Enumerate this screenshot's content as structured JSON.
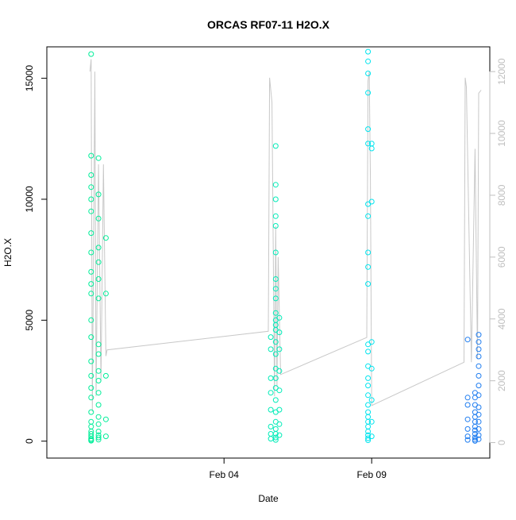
{
  "chart_data": {
    "type": "scatter",
    "title": "ORCAS RF07-11 H2O.X",
    "xlabel": "Date",
    "ylabel": "H2O.X",
    "x_ticks": [
      "Feb 04",
      "Feb 09"
    ],
    "y_ticks": [
      "0",
      "5000",
      "10000",
      "15000"
    ],
    "y2_ticks": [
      "0",
      "2000",
      "4000",
      "6000",
      "8000",
      "10000",
      "12000"
    ],
    "xlim": [
      "2016-01-29",
      "2016-02-13"
    ],
    "ylim": [
      -700,
      16300
    ],
    "y2lim": [
      -500,
      12800
    ],
    "grid": false,
    "colors": {
      "flight_rf07": "#00ee99",
      "flight_rf08": "#00ecb8",
      "flight_rf09": "#00e4ee",
      "flight_rf10_11": "#1f7df0",
      "altitude_line": "#c8c8c8",
      "axis": "#000000",
      "right_axis": "#bfbfbf"
    },
    "series": [
      {
        "points": [
          {
            "x": "2016-01-30T12:00",
            "y": 16000
          },
          {
            "x": "2016-01-30T12:00",
            "y": 11800
          },
          {
            "x": "2016-01-30T12:00",
            "y": 11000
          },
          {
            "x": "2016-01-30T12:00",
            "y": 10500
          },
          {
            "x": "2016-01-30T12:00",
            "y": 10000
          },
          {
            "x": "2016-01-30T12:00",
            "y": 9500
          },
          {
            "x": "2016-01-30T12:00",
            "y": 8600
          },
          {
            "x": "2016-01-30T12:00",
            "y": 7800
          },
          {
            "x": "2016-01-30T12:00",
            "y": 7000
          },
          {
            "x": "2016-01-30T12:00",
            "y": 6500
          },
          {
            "x": "2016-01-30T12:00",
            "y": 6100
          },
          {
            "x": "2016-01-30T12:00",
            "y": 5000
          },
          {
            "x": "2016-01-30T12:00",
            "y": 4300
          },
          {
            "x": "2016-01-30T12:00",
            "y": 3300
          },
          {
            "x": "2016-01-30T12:00",
            "y": 2700
          },
          {
            "x": "2016-01-30T12:00",
            "y": 2200
          },
          {
            "x": "2016-01-30T12:00",
            "y": 1800
          },
          {
            "x": "2016-01-30T12:00",
            "y": 1200
          },
          {
            "x": "2016-01-30T12:00",
            "y": 800
          },
          {
            "x": "2016-01-30T12:00",
            "y": 600
          },
          {
            "x": "2016-01-30T12:00",
            "y": 400
          },
          {
            "x": "2016-01-30T12:00",
            "y": 300
          },
          {
            "x": "2016-01-30T12:00",
            "y": 200
          },
          {
            "x": "2016-01-30T12:00",
            "y": 100
          },
          {
            "x": "2016-01-30T12:00",
            "y": 50
          },
          {
            "x": "2016-01-30T12:00",
            "y": 20
          },
          {
            "x": "2016-01-30T18:00",
            "y": 11700
          },
          {
            "x": "2016-01-30T18:00",
            "y": 10200
          },
          {
            "x": "2016-01-30T18:00",
            "y": 9200
          },
          {
            "x": "2016-01-30T18:00",
            "y": 8000
          },
          {
            "x": "2016-01-30T18:00",
            "y": 7400
          },
          {
            "x": "2016-01-30T18:00",
            "y": 6700
          },
          {
            "x": "2016-01-30T18:00",
            "y": 5900
          },
          {
            "x": "2016-01-30T18:00",
            "y": 4000
          },
          {
            "x": "2016-01-30T18:00",
            "y": 3600
          },
          {
            "x": "2016-01-30T18:00",
            "y": 2900
          },
          {
            "x": "2016-01-30T18:00",
            "y": 2500
          },
          {
            "x": "2016-01-30T18:00",
            "y": 2000
          },
          {
            "x": "2016-01-30T18:00",
            "y": 1500
          },
          {
            "x": "2016-01-30T18:00",
            "y": 1000
          },
          {
            "x": "2016-01-30T18:00",
            "y": 700
          },
          {
            "x": "2016-01-30T18:00",
            "y": 400
          },
          {
            "x": "2016-01-30T18:00",
            "y": 250
          },
          {
            "x": "2016-01-30T18:00",
            "y": 150
          },
          {
            "x": "2016-01-30T18:00",
            "y": 60
          },
          {
            "x": "2016-01-31T00:00",
            "y": 8400
          },
          {
            "x": "2016-01-31T00:00",
            "y": 6100
          },
          {
            "x": "2016-01-31T00:00",
            "y": 2700
          },
          {
            "x": "2016-01-31T00:00",
            "y": 900
          },
          {
            "x": "2016-01-31T00:00",
            "y": 200
          }
        ]
      },
      {
        "points": [
          {
            "x": "2016-02-05T14:00",
            "y": 4300
          },
          {
            "x": "2016-02-05T14:00",
            "y": 3800
          },
          {
            "x": "2016-02-05T14:00",
            "y": 2600
          },
          {
            "x": "2016-02-05T14:00",
            "y": 2000
          },
          {
            "x": "2016-02-05T14:00",
            "y": 1300
          },
          {
            "x": "2016-02-05T14:00",
            "y": 600
          },
          {
            "x": "2016-02-05T14:00",
            "y": 300
          },
          {
            "x": "2016-02-05T14:00",
            "y": 100
          },
          {
            "x": "2016-02-05T18:00",
            "y": 12200
          },
          {
            "x": "2016-02-05T18:00",
            "y": 10600
          },
          {
            "x": "2016-02-05T18:00",
            "y": 10000
          },
          {
            "x": "2016-02-05T18:00",
            "y": 9300
          },
          {
            "x": "2016-02-05T18:00",
            "y": 8900
          },
          {
            "x": "2016-02-05T18:00",
            "y": 7800
          },
          {
            "x": "2016-02-05T18:00",
            "y": 6700
          },
          {
            "x": "2016-02-05T18:00",
            "y": 6300
          },
          {
            "x": "2016-02-05T18:00",
            "y": 5900
          },
          {
            "x": "2016-02-05T18:00",
            "y": 5300
          },
          {
            "x": "2016-02-05T18:00",
            "y": 5000
          },
          {
            "x": "2016-02-05T18:00",
            "y": 4800
          },
          {
            "x": "2016-02-05T18:00",
            "y": 4600
          },
          {
            "x": "2016-02-05T18:00",
            "y": 4100
          },
          {
            "x": "2016-02-05T18:00",
            "y": 3600
          },
          {
            "x": "2016-02-05T18:00",
            "y": 3000
          },
          {
            "x": "2016-02-05T18:00",
            "y": 2600
          },
          {
            "x": "2016-02-05T18:00",
            "y": 2200
          },
          {
            "x": "2016-02-05T18:00",
            "y": 1700
          },
          {
            "x": "2016-02-05T18:00",
            "y": 1200
          },
          {
            "x": "2016-02-05T18:00",
            "y": 800
          },
          {
            "x": "2016-02-05T18:00",
            "y": 500
          },
          {
            "x": "2016-02-05T18:00",
            "y": 300
          },
          {
            "x": "2016-02-05T18:00",
            "y": 150
          },
          {
            "x": "2016-02-05T18:00",
            "y": 50
          },
          {
            "x": "2016-02-05T21:00",
            "y": 5100
          },
          {
            "x": "2016-02-05T21:00",
            "y": 4500
          },
          {
            "x": "2016-02-05T21:00",
            "y": 3800
          },
          {
            "x": "2016-02-05T21:00",
            "y": 2900
          },
          {
            "x": "2016-02-05T21:00",
            "y": 2100
          },
          {
            "x": "2016-02-05T21:00",
            "y": 1300
          },
          {
            "x": "2016-02-05T21:00",
            "y": 700
          },
          {
            "x": "2016-02-05T21:00",
            "y": 250
          }
        ]
      },
      {
        "points": [
          {
            "x": "2016-02-08T21:00",
            "y": 16100
          },
          {
            "x": "2016-02-08T21:00",
            "y": 15700
          },
          {
            "x": "2016-02-08T21:00",
            "y": 15200
          },
          {
            "x": "2016-02-08T21:00",
            "y": 14400
          },
          {
            "x": "2016-02-08T21:00",
            "y": 12900
          },
          {
            "x": "2016-02-08T21:00",
            "y": 12300
          },
          {
            "x": "2016-02-08T21:00",
            "y": 9800
          },
          {
            "x": "2016-02-08T21:00",
            "y": 9300
          },
          {
            "x": "2016-02-08T21:00",
            "y": 7800
          },
          {
            "x": "2016-02-08T21:00",
            "y": 7200
          },
          {
            "x": "2016-02-08T21:00",
            "y": 6500
          },
          {
            "x": "2016-02-08T21:00",
            "y": 4000
          },
          {
            "x": "2016-02-08T21:00",
            "y": 3700
          },
          {
            "x": "2016-02-08T21:00",
            "y": 3100
          },
          {
            "x": "2016-02-08T21:00",
            "y": 2600
          },
          {
            "x": "2016-02-08T21:00",
            "y": 2300
          },
          {
            "x": "2016-02-08T21:00",
            "y": 1900
          },
          {
            "x": "2016-02-08T21:00",
            "y": 1500
          },
          {
            "x": "2016-02-08T21:00",
            "y": 1200
          },
          {
            "x": "2016-02-08T21:00",
            "y": 1000
          },
          {
            "x": "2016-02-08T21:00",
            "y": 800
          },
          {
            "x": "2016-02-08T21:00",
            "y": 600
          },
          {
            "x": "2016-02-08T21:00",
            "y": 400
          },
          {
            "x": "2016-02-08T21:00",
            "y": 250
          },
          {
            "x": "2016-02-08T21:00",
            "y": 120
          },
          {
            "x": "2016-02-08T21:00",
            "y": 40
          },
          {
            "x": "2016-02-09T00:00",
            "y": 12300
          },
          {
            "x": "2016-02-09T00:00",
            "y": 12100
          },
          {
            "x": "2016-02-09T00:00",
            "y": 9900
          },
          {
            "x": "2016-02-09T00:00",
            "y": 4100
          },
          {
            "x": "2016-02-09T00:00",
            "y": 3000
          },
          {
            "x": "2016-02-09T00:00",
            "y": 1700
          },
          {
            "x": "2016-02-09T00:00",
            "y": 800
          },
          {
            "x": "2016-02-09T00:00",
            "y": 200
          }
        ]
      },
      {
        "points": [
          {
            "x": "2016-02-12T06:00",
            "y": 4200
          },
          {
            "x": "2016-02-12T06:00",
            "y": 1800
          },
          {
            "x": "2016-02-12T06:00",
            "y": 1500
          },
          {
            "x": "2016-02-12T06:00",
            "y": 900
          },
          {
            "x": "2016-02-12T06:00",
            "y": 500
          },
          {
            "x": "2016-02-12T06:00",
            "y": 200
          },
          {
            "x": "2016-02-12T06:00",
            "y": 50
          },
          {
            "x": "2016-02-12T12:00",
            "y": 2000
          },
          {
            "x": "2016-02-12T12:00",
            "y": 1800
          },
          {
            "x": "2016-02-12T12:00",
            "y": 1500
          },
          {
            "x": "2016-02-12T12:00",
            "y": 1200
          },
          {
            "x": "2016-02-12T12:00",
            "y": 1000
          },
          {
            "x": "2016-02-12T12:00",
            "y": 800
          },
          {
            "x": "2016-02-12T12:00",
            "y": 600
          },
          {
            "x": "2016-02-12T12:00",
            "y": 450
          },
          {
            "x": "2016-02-12T12:00",
            "y": 300
          },
          {
            "x": "2016-02-12T12:00",
            "y": 150
          },
          {
            "x": "2016-02-12T12:00",
            "y": 60
          },
          {
            "x": "2016-02-12T12:00",
            "y": 10
          },
          {
            "x": "2016-02-12T15:00",
            "y": 4400
          },
          {
            "x": "2016-02-12T15:00",
            "y": 4100
          },
          {
            "x": "2016-02-12T15:00",
            "y": 3800
          },
          {
            "x": "2016-02-12T15:00",
            "y": 3500
          },
          {
            "x": "2016-02-12T15:00",
            "y": 3100
          },
          {
            "x": "2016-02-12T15:00",
            "y": 2700
          },
          {
            "x": "2016-02-12T15:00",
            "y": 2300
          },
          {
            "x": "2016-02-12T15:00",
            "y": 1900
          },
          {
            "x": "2016-02-12T15:00",
            "y": 1400
          },
          {
            "x": "2016-02-12T15:00",
            "y": 1100
          },
          {
            "x": "2016-02-12T15:00",
            "y": 800
          },
          {
            "x": "2016-02-12T15:00",
            "y": 500
          },
          {
            "x": "2016-02-12T15:00",
            "y": 250
          },
          {
            "x": "2016-02-12T15:00",
            "y": 80
          }
        ]
      }
    ],
    "secondary_line": [
      {
        "x": "2016-01-30T11:00",
        "y": 12000
      },
      {
        "x": "2016-01-30T12:00",
        "y": 12400
      },
      {
        "x": "2016-01-30T13:00",
        "y": 1000
      },
      {
        "x": "2016-01-30T15:00",
        "y": 12000
      },
      {
        "x": "2016-01-30T16:00",
        "y": 1500
      },
      {
        "x": "2016-01-30T18:00",
        "y": 9000
      },
      {
        "x": "2016-01-30T20:00",
        "y": 2000
      },
      {
        "x": "2016-01-30T22:00",
        "y": 9000
      },
      {
        "x": "2016-01-31T00:00",
        "y": 2800
      },
      {
        "x": "2016-01-31T01:00",
        "y": 3000
      },
      {
        "x": "2016-02-05T12:00",
        "y": 3600
      },
      {
        "x": "2016-02-05T13:00",
        "y": 11800
      },
      {
        "x": "2016-02-05T14:00",
        "y": 11400
      },
      {
        "x": "2016-02-05T15:00",
        "y": 11000
      },
      {
        "x": "2016-02-05T17:00",
        "y": 1500
      },
      {
        "x": "2016-02-05T18:00",
        "y": 7000
      },
      {
        "x": "2016-02-05T19:00",
        "y": 1800
      },
      {
        "x": "2016-02-05T20:00",
        "y": 6000
      },
      {
        "x": "2016-02-05T22:00",
        "y": 2200
      },
      {
        "x": "2016-02-08T20:00",
        "y": 3400
      },
      {
        "x": "2016-02-08T21:00",
        "y": 11700
      },
      {
        "x": "2016-02-08T22:00",
        "y": 12000
      },
      {
        "x": "2016-02-08T23:00",
        "y": 8500
      },
      {
        "x": "2016-02-09T00:00",
        "y": 1200
      },
      {
        "x": "2016-02-12T03:00",
        "y": 2600
      },
      {
        "x": "2016-02-12T04:00",
        "y": 11800
      },
      {
        "x": "2016-02-12T05:00",
        "y": 11500
      },
      {
        "x": "2016-02-12T09:00",
        "y": 2600
      },
      {
        "x": "2016-02-12T12:00",
        "y": 9500
      },
      {
        "x": "2016-02-12T14:00",
        "y": 2700
      },
      {
        "x": "2016-02-12T15:00",
        "y": 11300
      },
      {
        "x": "2016-02-12T17:00",
        "y": 11400
      }
    ]
  }
}
